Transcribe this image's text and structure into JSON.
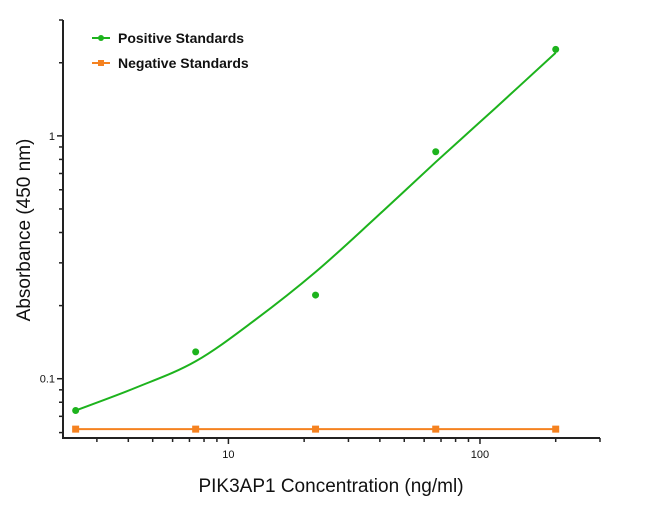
{
  "chart_data": {
    "type": "scatter",
    "title": "",
    "xlabel": "PIK3AP1 Concentration (ng/ml)",
    "ylabel": "Absorbance (450 nm)",
    "x_scale": "log",
    "y_scale": "log",
    "xlim": [
      2.2,
      300
    ],
    "ylim": [
      0.057,
      3
    ],
    "x_ticks": [
      {
        "value": 10,
        "label": "10"
      },
      {
        "value": 100,
        "label": "100"
      }
    ],
    "y_ticks": [
      {
        "value": 0.1,
        "label": "0.1"
      },
      {
        "value": 1,
        "label": "1"
      }
    ],
    "grid": false,
    "legend_position": "top-left",
    "series": [
      {
        "name": "Positive Standards",
        "color": "#1db31d",
        "marker": "circle",
        "x": [
          2.47,
          7.41,
          22.2,
          66.7,
          200
        ],
        "y": [
          0.074,
          0.129,
          0.221,
          0.86,
          2.27
        ],
        "fit_curve": {
          "x": [
            2.47,
            4.3,
            7.41,
            12.8,
            22.2,
            38.5,
            66.7,
            115,
            200
          ],
          "y": [
            0.074,
            0.092,
            0.118,
            0.175,
            0.275,
            0.46,
            0.78,
            1.3,
            2.2
          ]
        }
      },
      {
        "name": "Negative Standards",
        "color": "#f58220",
        "marker": "square",
        "x": [
          2.47,
          7.41,
          22.2,
          66.7,
          200
        ],
        "y": [
          0.062,
          0.062,
          0.062,
          0.062,
          0.062
        ]
      }
    ]
  }
}
